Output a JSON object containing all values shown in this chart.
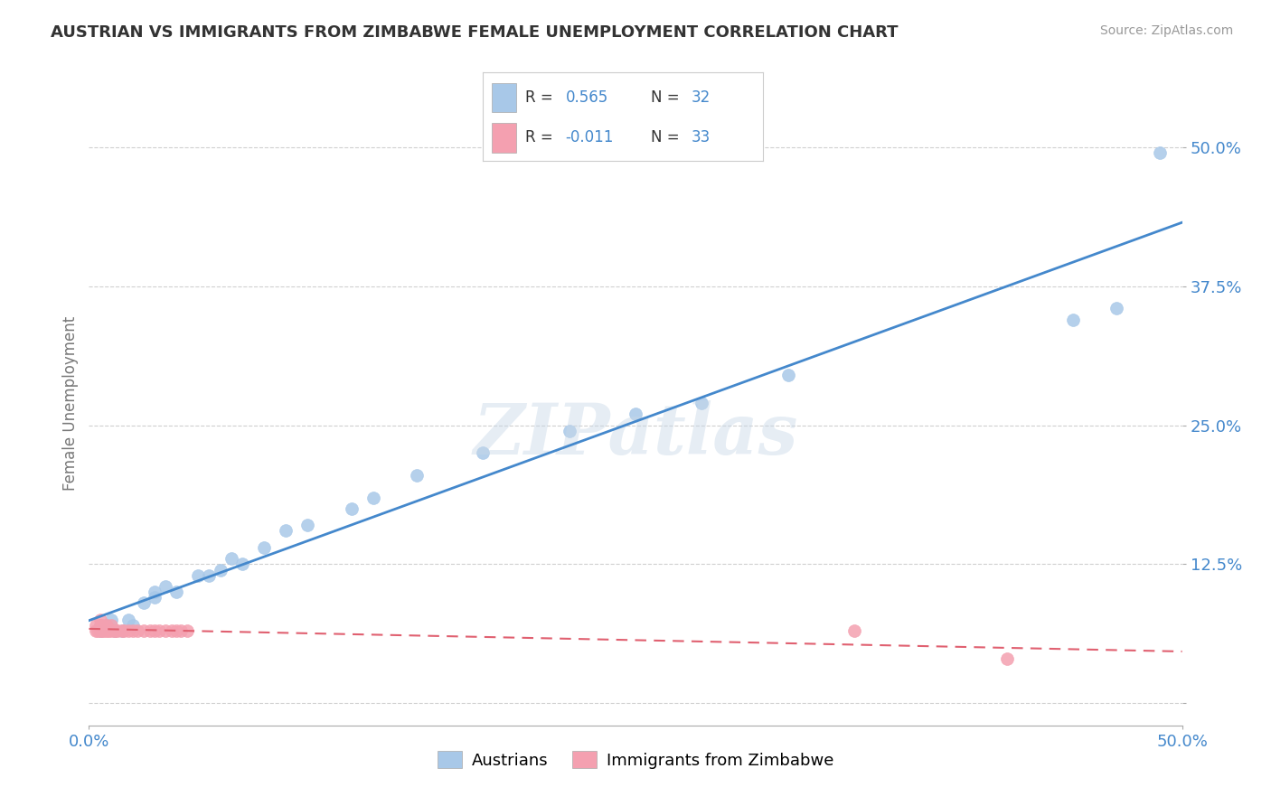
{
  "title": "AUSTRIAN VS IMMIGRANTS FROM ZIMBABWE FEMALE UNEMPLOYMENT CORRELATION CHART",
  "source": "Source: ZipAtlas.com",
  "ylabel": "Female Unemployment",
  "xlim": [
    0.0,
    0.5
  ],
  "ylim": [
    -0.02,
    0.56
  ],
  "yticks": [
    0.0,
    0.125,
    0.25,
    0.375,
    0.5
  ],
  "ytick_labels": [
    "",
    "12.5%",
    "25.0%",
    "37.5%",
    "50.0%"
  ],
  "xticks": [
    0.0,
    0.5
  ],
  "xtick_labels": [
    "0.0%",
    "50.0%"
  ],
  "background_color": "#ffffff",
  "grid_color": "#d0d0d0",
  "blue_color": "#a8c8e8",
  "pink_color": "#f4a0b0",
  "blue_line_color": "#4488cc",
  "pink_line_color": "#e06070",
  "legend_label1": "Austrians",
  "legend_label2": "Immigrants from Zimbabwe",
  "watermark": "ZIPatlas",
  "austrian_x": [
    0.005,
    0.005,
    0.008,
    0.01,
    0.012,
    0.015,
    0.018,
    0.02,
    0.025,
    0.03,
    0.03,
    0.035,
    0.04,
    0.05,
    0.055,
    0.06,
    0.065,
    0.07,
    0.08,
    0.09,
    0.1,
    0.12,
    0.13,
    0.15,
    0.18,
    0.22,
    0.25,
    0.28,
    0.32,
    0.45,
    0.47,
    0.49
  ],
  "austrian_y": [
    0.065,
    0.07,
    0.07,
    0.075,
    0.065,
    0.065,
    0.075,
    0.07,
    0.09,
    0.095,
    0.1,
    0.105,
    0.1,
    0.115,
    0.115,
    0.12,
    0.13,
    0.125,
    0.14,
    0.155,
    0.16,
    0.175,
    0.185,
    0.205,
    0.225,
    0.245,
    0.26,
    0.27,
    0.295,
    0.345,
    0.355,
    0.495
  ],
  "zimbabwe_x": [
    0.003,
    0.003,
    0.004,
    0.005,
    0.005,
    0.005,
    0.006,
    0.006,
    0.007,
    0.008,
    0.008,
    0.009,
    0.01,
    0.01,
    0.012,
    0.012,
    0.013,
    0.015,
    0.016,
    0.018,
    0.02,
    0.022,
    0.025,
    0.028,
    0.03,
    0.032,
    0.035,
    0.038,
    0.04,
    0.042,
    0.045,
    0.35,
    0.42
  ],
  "zimbabwe_y": [
    0.065,
    0.07,
    0.065,
    0.07,
    0.065,
    0.075,
    0.065,
    0.07,
    0.065,
    0.07,
    0.065,
    0.065,
    0.065,
    0.07,
    0.065,
    0.065,
    0.065,
    0.065,
    0.065,
    0.065,
    0.065,
    0.065,
    0.065,
    0.065,
    0.065,
    0.065,
    0.065,
    0.065,
    0.065,
    0.065,
    0.065,
    0.065,
    0.04
  ]
}
